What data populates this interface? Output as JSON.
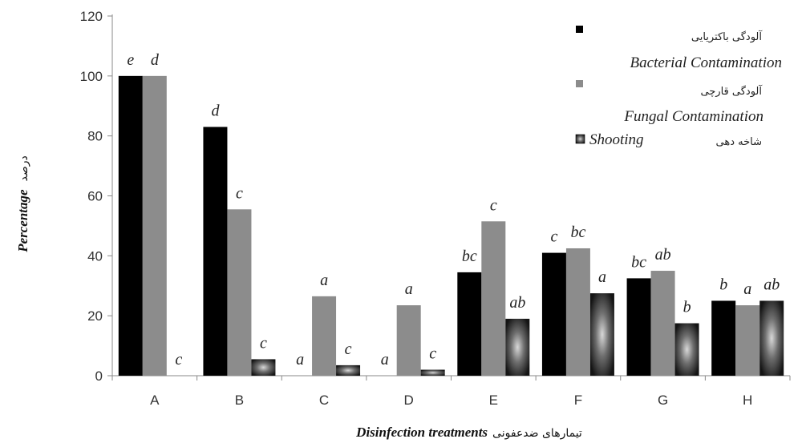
{
  "chart_data": {
    "type": "bar",
    "categories": [
      "A",
      "B",
      "C",
      "D",
      "E",
      "F",
      "G",
      "H"
    ],
    "series": [
      {
        "name": "Bacterial Contamination",
        "name_fa": "آلودگی باکتریایی",
        "color": "#000000",
        "values": [
          100,
          83,
          0,
          0,
          34.5,
          41,
          32.5,
          25
        ],
        "labels": [
          "e",
          "d",
          "a",
          "a",
          "bc",
          "c",
          "bc",
          "b"
        ]
      },
      {
        "name": "Fungal Contamination",
        "name_fa": "آلودگی قارچی",
        "color": "#8c8c8c",
        "values": [
          100,
          55.5,
          26.5,
          23.5,
          51.5,
          42.5,
          35,
          23.5
        ],
        "labels": [
          "d",
          "c",
          "a",
          "a",
          "c",
          "bc",
          "ab",
          "a"
        ]
      },
      {
        "name": "Shooting",
        "name_fa": "شاخه دهی",
        "color": "#3a3a3a",
        "values": [
          0,
          5.5,
          3.5,
          2,
          19,
          27.5,
          17.5,
          25
        ],
        "labels": [
          "c",
          "c",
          "c",
          "c",
          "ab",
          "a",
          "b",
          "ab"
        ]
      }
    ],
    "xlabel": "Disinfection treatments",
    "xlabel_fa": "تیمارهای ضدعفونی",
    "ylabel": "Percentage",
    "ylabel_fa": "درصد",
    "ylim": [
      0,
      120
    ],
    "yticks": [
      "0",
      "20",
      "40",
      "60",
      "80",
      "100",
      "120"
    ],
    "grid": false,
    "legend_position": "top-right"
  }
}
